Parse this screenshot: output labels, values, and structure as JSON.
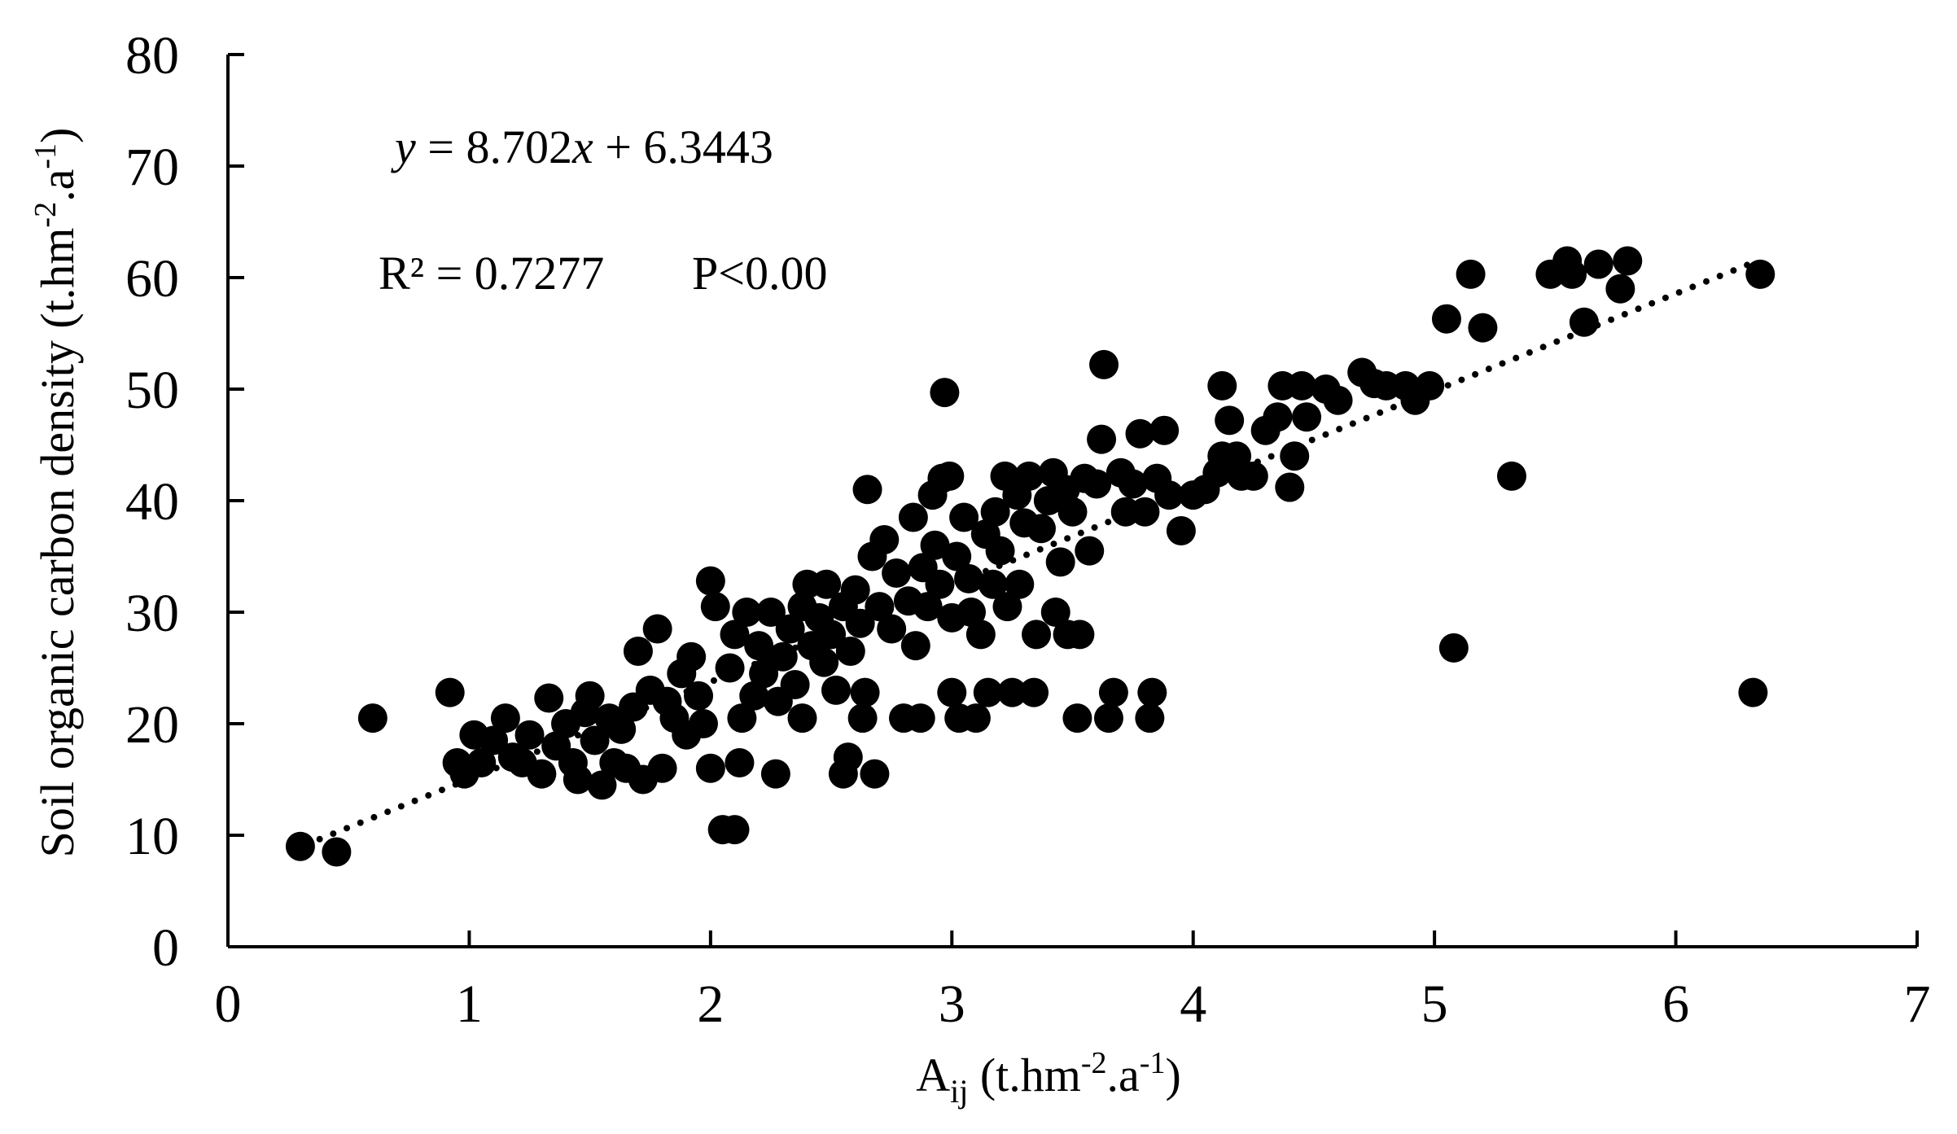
{
  "chart_data": {
    "type": "scatter",
    "title": "",
    "xlabel": "A",
    "xlabel_sub": "ij",
    "xlabel_unit_pre": " (t.hm",
    "xlabel_unit_sup1": "-2",
    "xlabel_unit_mid": ".a",
    "xlabel_unit_sup2": "-1",
    "xlabel_unit_post": ")",
    "ylabel_main": "Soil organic carbon density (t.hm",
    "ylabel_sup1": "-2",
    "ylabel_mid": ".a",
    "ylabel_sup2": "-1",
    "ylabel_post": ")",
    "xlim": [
      0,
      7
    ],
    "ylim": [
      0,
      80
    ],
    "xticks": [
      "0",
      "1",
      "2",
      "3",
      "4",
      "5",
      "6",
      "7"
    ],
    "yticks": [
      "0",
      "10",
      "20",
      "30",
      "40",
      "50",
      "60",
      "70",
      "80"
    ],
    "grid": false,
    "legend": "none",
    "marker_color": "#000000",
    "trendline": {
      "slope": 8.702,
      "intercept": 6.3443,
      "x_range": [
        0.38,
        6.3
      ],
      "style": "dotted"
    },
    "annotations": {
      "equation_y": "y",
      "equation_mid": " = 8.702",
      "equation_x": "x",
      "equation_rest": " + 6.3443",
      "r2_text": "R² = 0.7277",
      "p_text": "P<0.00"
    },
    "points": [
      [
        0.3,
        9.0
      ],
      [
        0.45,
        8.5
      ],
      [
        0.6,
        20.5
      ],
      [
        0.92,
        22.8
      ],
      [
        0.95,
        16.5
      ],
      [
        0.98,
        15.5
      ],
      [
        1.02,
        19.0
      ],
      [
        1.05,
        16.5
      ],
      [
        1.1,
        18.5
      ],
      [
        1.15,
        20.5
      ],
      [
        1.18,
        17.0
      ],
      [
        1.22,
        16.5
      ],
      [
        1.25,
        19.0
      ],
      [
        1.3,
        15.5
      ],
      [
        1.33,
        22.3
      ],
      [
        1.36,
        18.0
      ],
      [
        1.4,
        20.0
      ],
      [
        1.43,
        16.5
      ],
      [
        1.45,
        15.0
      ],
      [
        1.48,
        21.0
      ],
      [
        1.5,
        22.5
      ],
      [
        1.52,
        18.5
      ],
      [
        1.55,
        14.5
      ],
      [
        1.58,
        20.5
      ],
      [
        1.6,
        16.5
      ],
      [
        1.63,
        19.5
      ],
      [
        1.65,
        16.0
      ],
      [
        1.68,
        21.5
      ],
      [
        1.7,
        26.5
      ],
      [
        1.72,
        15.0
      ],
      [
        1.75,
        23.0
      ],
      [
        1.78,
        28.5
      ],
      [
        1.8,
        16.0
      ],
      [
        1.82,
        22.0
      ],
      [
        1.85,
        20.5
      ],
      [
        1.88,
        24.5
      ],
      [
        1.9,
        19.0
      ],
      [
        1.92,
        26.0
      ],
      [
        1.95,
        22.5
      ],
      [
        1.97,
        20.0
      ],
      [
        2.0,
        32.8
      ],
      [
        2.0,
        16.0
      ],
      [
        2.02,
        30.5
      ],
      [
        2.05,
        10.5
      ],
      [
        2.08,
        25.0
      ],
      [
        2.1,
        28.0
      ],
      [
        2.1,
        10.5
      ],
      [
        2.12,
        16.5
      ],
      [
        2.13,
        20.5
      ],
      [
        2.15,
        30.0
      ],
      [
        2.18,
        22.5
      ],
      [
        2.2,
        27.0
      ],
      [
        2.22,
        24.5
      ],
      [
        2.25,
        30.0
      ],
      [
        2.27,
        15.5
      ],
      [
        2.28,
        22.0
      ],
      [
        2.3,
        26.0
      ],
      [
        2.33,
        28.5
      ],
      [
        2.35,
        23.5
      ],
      [
        2.38,
        30.5
      ],
      [
        2.38,
        20.5
      ],
      [
        2.4,
        32.5
      ],
      [
        2.42,
        27.0
      ],
      [
        2.45,
        29.5
      ],
      [
        2.47,
        25.5
      ],
      [
        2.48,
        32.5
      ],
      [
        2.5,
        28.0
      ],
      [
        2.52,
        23.0
      ],
      [
        2.55,
        15.5
      ],
      [
        2.55,
        30.5
      ],
      [
        2.57,
        17.0
      ],
      [
        2.58,
        26.5
      ],
      [
        2.6,
        32.0
      ],
      [
        2.62,
        29.0
      ],
      [
        2.63,
        20.5
      ],
      [
        2.64,
        22.8
      ],
      [
        2.65,
        41.0
      ],
      [
        2.67,
        35.0
      ],
      [
        2.68,
        15.5
      ],
      [
        2.7,
        30.5
      ],
      [
        2.72,
        36.5
      ],
      [
        2.75,
        28.5
      ],
      [
        2.77,
        33.5
      ],
      [
        2.8,
        20.5
      ],
      [
        2.82,
        31.0
      ],
      [
        2.84,
        38.5
      ],
      [
        2.85,
        27.0
      ],
      [
        2.87,
        20.5
      ],
      [
        2.88,
        34.0
      ],
      [
        2.9,
        30.5
      ],
      [
        2.92,
        40.5
      ],
      [
        2.93,
        36.0
      ],
      [
        2.95,
        32.5
      ],
      [
        2.96,
        42.0
      ],
      [
        2.97,
        49.7
      ],
      [
        2.99,
        42.2
      ],
      [
        3.0,
        29.5
      ],
      [
        3.0,
        22.8
      ],
      [
        3.02,
        35.0
      ],
      [
        3.03,
        20.5
      ],
      [
        3.05,
        38.5
      ],
      [
        3.07,
        33.0
      ],
      [
        3.08,
        30.0
      ],
      [
        3.1,
        20.5
      ],
      [
        3.12,
        28.0
      ],
      [
        3.14,
        37.0
      ],
      [
        3.15,
        22.8
      ],
      [
        3.17,
        32.5
      ],
      [
        3.18,
        39.0
      ],
      [
        3.2,
        35.5
      ],
      [
        3.22,
        42.2
      ],
      [
        3.23,
        30.5
      ],
      [
        3.25,
        22.8
      ],
      [
        3.27,
        40.5
      ],
      [
        3.28,
        32.5
      ],
      [
        3.3,
        38.0
      ],
      [
        3.32,
        42.2
      ],
      [
        3.34,
        22.8
      ],
      [
        3.35,
        28.0
      ],
      [
        3.37,
        37.5
      ],
      [
        3.4,
        40.0
      ],
      [
        3.42,
        42.5
      ],
      [
        3.43,
        30.0
      ],
      [
        3.45,
        34.5
      ],
      [
        3.47,
        41.0
      ],
      [
        3.48,
        28.0
      ],
      [
        3.5,
        39.0
      ],
      [
        3.52,
        20.5
      ],
      [
        3.53,
        28.0
      ],
      [
        3.55,
        42.0
      ],
      [
        3.57,
        35.5
      ],
      [
        3.6,
        41.5
      ],
      [
        3.62,
        45.5
      ],
      [
        3.63,
        52.2
      ],
      [
        3.65,
        20.5
      ],
      [
        3.67,
        22.8
      ],
      [
        3.7,
        42.5
      ],
      [
        3.72,
        39.0
      ],
      [
        3.75,
        41.5
      ],
      [
        3.78,
        46.0
      ],
      [
        3.8,
        39.0
      ],
      [
        3.82,
        20.5
      ],
      [
        3.83,
        22.8
      ],
      [
        3.85,
        42.0
      ],
      [
        3.88,
        46.3
      ],
      [
        3.9,
        40.5
      ],
      [
        3.95,
        37.3
      ],
      [
        4.0,
        40.5
      ],
      [
        4.05,
        41.0
      ],
      [
        4.1,
        42.5
      ],
      [
        4.12,
        44.0
      ],
      [
        4.15,
        47.2
      ],
      [
        4.18,
        44.0
      ],
      [
        4.2,
        42.2
      ],
      [
        4.12,
        50.3
      ],
      [
        4.25,
        42.2
      ],
      [
        4.3,
        46.3
      ],
      [
        4.35,
        47.5
      ],
      [
        4.37,
        50.3
      ],
      [
        4.4,
        41.2
      ],
      [
        4.42,
        44.0
      ],
      [
        4.45,
        50.3
      ],
      [
        4.47,
        47.5
      ],
      [
        4.55,
        50.0
      ],
      [
        4.6,
        49.0
      ],
      [
        4.7,
        51.5
      ],
      [
        4.75,
        50.5
      ],
      [
        4.8,
        50.3
      ],
      [
        4.88,
        50.3
      ],
      [
        4.92,
        49.0
      ],
      [
        4.98,
        50.3
      ],
      [
        5.05,
        56.3
      ],
      [
        5.08,
        26.8
      ],
      [
        5.15,
        60.3
      ],
      [
        5.2,
        55.5
      ],
      [
        5.32,
        42.2
      ],
      [
        5.48,
        60.3
      ],
      [
        5.55,
        61.5
      ],
      [
        5.57,
        60.3
      ],
      [
        5.62,
        56.0
      ],
      [
        5.68,
        61.2
      ],
      [
        5.77,
        59.0
      ],
      [
        5.8,
        61.5
      ],
      [
        6.32,
        22.8
      ],
      [
        6.35,
        60.3
      ]
    ]
  }
}
